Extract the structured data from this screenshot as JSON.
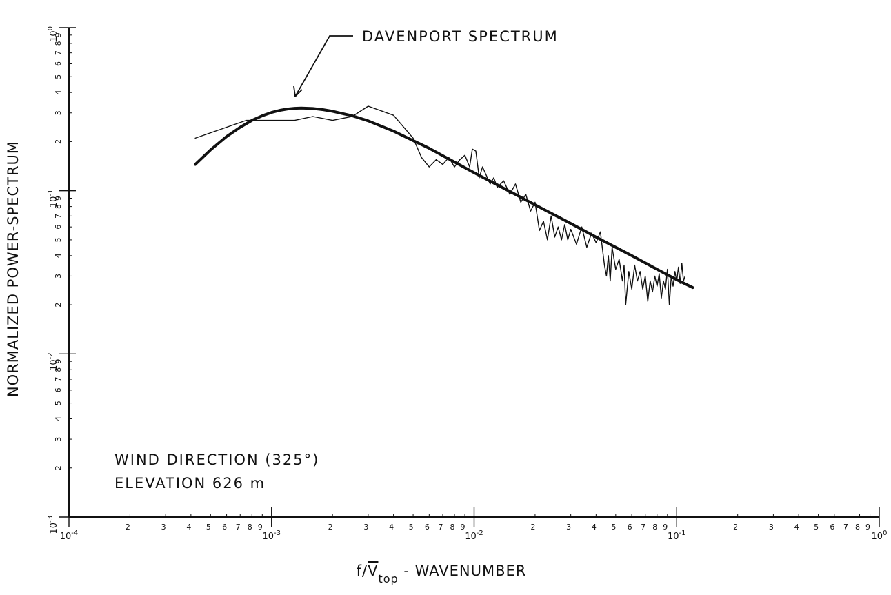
{
  "chart_data": {
    "type": "line",
    "title": "",
    "xlabel": {
      "prefix": "f/",
      "symbol": "V",
      "subscript": "top",
      "suffix": " -  WAVENUMBER"
    },
    "ylabel": "NORMALIZED POWER-SPECTRUM",
    "xscale": "log",
    "yscale": "log",
    "xlim": [
      0.0001,
      1
    ],
    "ylim": [
      0.001,
      1
    ],
    "x_decade_labels": [
      {
        "base": "10",
        "exp": "-4"
      },
      {
        "base": "10",
        "exp": "-3"
      },
      {
        "base": "10",
        "exp": "-2"
      },
      {
        "base": "10",
        "exp": "-1"
      },
      {
        "base": "10",
        "exp": "0"
      }
    ],
    "y_decade_labels": [
      {
        "base": "10",
        "exp": "-3"
      },
      {
        "base": "10",
        "exp": "-2"
      },
      {
        "base": "10",
        "exp": "-1"
      },
      {
        "base": "10",
        "exp": "0"
      }
    ],
    "minor_tick_labels": [
      "2",
      "3",
      "4",
      "5",
      "6",
      "7",
      "8",
      "9"
    ],
    "grid": false,
    "annotations": {
      "davenport_label": "DAVENPORT  SPECTRUM",
      "wind_direction": "WIND DIRECTION (325°)",
      "elevation": "ELEVATION  626 m"
    },
    "series": [
      {
        "name": "DAVENPORT  SPECTRUM",
        "style": "thick",
        "x": [
          0.00042,
          0.0005,
          0.0006,
          0.0007,
          0.0008,
          0.0009,
          0.001,
          0.0011,
          0.0012,
          0.0013,
          0.0014,
          0.0016,
          0.0018,
          0.002,
          0.0025,
          0.003,
          0.004,
          0.005,
          0.006,
          0.008,
          0.01,
          0.015,
          0.02,
          0.03,
          0.04,
          0.05,
          0.06,
          0.08,
          0.1,
          0.12
        ],
        "y": [
          0.145,
          0.178,
          0.215,
          0.245,
          0.27,
          0.288,
          0.302,
          0.311,
          0.317,
          0.32,
          0.321,
          0.319,
          0.314,
          0.307,
          0.288,
          0.268,
          0.232,
          0.203,
          0.182,
          0.15,
          0.129,
          0.099,
          0.082,
          0.063,
          0.052,
          0.045,
          0.04,
          0.033,
          0.0285,
          0.0255
        ]
      },
      {
        "name": "",
        "style": "thin",
        "x": [
          0.00042,
          0.00075,
          0.0009,
          0.0013,
          0.0016,
          0.002,
          0.0025,
          0.003,
          0.004,
          0.005,
          0.0055,
          0.006,
          0.0065,
          0.007,
          0.0075,
          0.008,
          0.0085,
          0.009,
          0.0095,
          0.0098,
          0.0102,
          0.0106,
          0.011,
          0.012,
          0.0125,
          0.013,
          0.014,
          0.015,
          0.016,
          0.017,
          0.018,
          0.019,
          0.02,
          0.021,
          0.022,
          0.023,
          0.024,
          0.025,
          0.026,
          0.027,
          0.028,
          0.029,
          0.03,
          0.032,
          0.034,
          0.036,
          0.038,
          0.04,
          0.042,
          0.044,
          0.045,
          0.046,
          0.047,
          0.048,
          0.05,
          0.052,
          0.054,
          0.055,
          0.056,
          0.058,
          0.06,
          0.062,
          0.064,
          0.066,
          0.068,
          0.07,
          0.072,
          0.074,
          0.076,
          0.078,
          0.08,
          0.082,
          0.084,
          0.086,
          0.088,
          0.09,
          0.092,
          0.094,
          0.096,
          0.098,
          0.1,
          0.102,
          0.104,
          0.106,
          0.108,
          0.11
        ],
        "y": [
          0.21,
          0.27,
          0.27,
          0.27,
          0.285,
          0.27,
          0.285,
          0.33,
          0.29,
          0.21,
          0.16,
          0.14,
          0.155,
          0.145,
          0.16,
          0.14,
          0.155,
          0.165,
          0.14,
          0.18,
          0.175,
          0.12,
          0.14,
          0.11,
          0.12,
          0.105,
          0.115,
          0.095,
          0.11,
          0.085,
          0.095,
          0.075,
          0.085,
          0.057,
          0.065,
          0.05,
          0.07,
          0.052,
          0.06,
          0.05,
          0.062,
          0.05,
          0.058,
          0.047,
          0.06,
          0.045,
          0.055,
          0.048,
          0.056,
          0.035,
          0.03,
          0.04,
          0.028,
          0.045,
          0.033,
          0.038,
          0.028,
          0.035,
          0.02,
          0.032,
          0.025,
          0.035,
          0.028,
          0.032,
          0.025,
          0.03,
          0.021,
          0.028,
          0.024,
          0.03,
          0.026,
          0.031,
          0.022,
          0.028,
          0.025,
          0.033,
          0.02,
          0.03,
          0.026,
          0.032,
          0.028,
          0.034,
          0.027,
          0.036,
          0.028,
          0.03
        ]
      }
    ]
  }
}
